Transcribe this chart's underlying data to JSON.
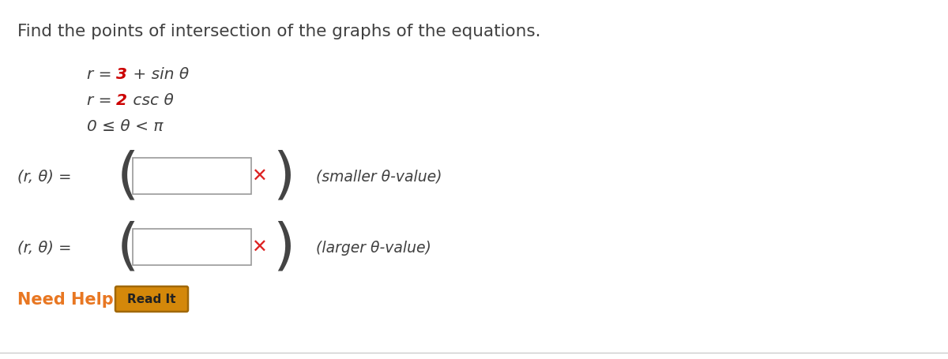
{
  "title_text": "Find the points of intersection of the graphs of the equations.",
  "title_color": "#404040",
  "title_fontsize": 15.5,
  "num_color": "#cc0000",
  "eq_color": "#404040",
  "eq_fontsize": 14.5,
  "label_color": "#404040",
  "label_fontsize": 14,
  "annotation1": "(smaller θ-value)",
  "annotation2": "(larger θ-value)",
  "annotation_color": "#404040",
  "annotation_fontsize": 13.5,
  "need_help_text": "Need Help?",
  "need_help_color": "#e87722",
  "need_help_fontsize": 15,
  "read_it_text": "Read It",
  "read_it_color": "#222222",
  "read_it_fontsize": 11,
  "read_it_bg": "#d4880a",
  "read_it_border": "#a06808",
  "box_facecolor": "#ffffff",
  "box_edgecolor": "#999999",
  "background_color": "#ffffff",
  "x_mark_color": "#dd2222",
  "paren_color": "#444444"
}
